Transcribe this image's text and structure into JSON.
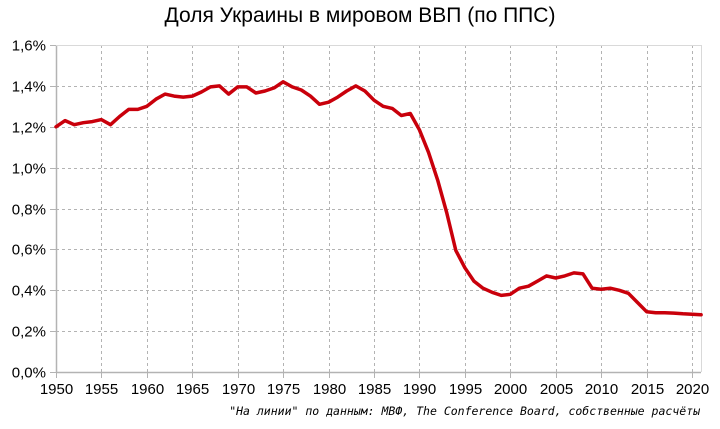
{
  "title": "Доля Украины в мировом ВВП (по ППС)",
  "source_note": "\"На линии\" по данным: МВФ, The Conference Board, собственные расчёты",
  "colors": {
    "line": "#c9000b",
    "grid": "#b3b3b3",
    "axis": "#b3b3b3",
    "background": "#ffffff"
  },
  "chart_data": {
    "type": "line",
    "title": "Доля Украины в мировом ВВП (по ППС)",
    "xlabel": "",
    "ylabel": "",
    "xlim": [
      1950,
      2021
    ],
    "ylim": [
      0,
      1.6
    ],
    "grid": true,
    "legend": null,
    "x_ticks": [
      "1950",
      "1955",
      "1960",
      "1965",
      "1970",
      "1975",
      "1980",
      "1985",
      "1990",
      "1995",
      "2000",
      "2005",
      "2010",
      "2015",
      "2020"
    ],
    "y_ticks": [
      "0,0%",
      "0,2%",
      "0,4%",
      "0,6%",
      "0,8%",
      "1,0%",
      "1,2%",
      "1,4%",
      "1,6%"
    ],
    "y_tick_values": [
      0,
      0.2,
      0.4,
      0.6,
      0.8,
      1.0,
      1.2,
      1.4,
      1.6
    ],
    "series": [
      {
        "name": "Доля Украины в мировом ВВП (по ППС), %",
        "x": [
          1950,
          1951,
          1952,
          1953,
          1954,
          1955,
          1956,
          1957,
          1958,
          1959,
          1960,
          1961,
          1962,
          1963,
          1964,
          1965,
          1966,
          1967,
          1968,
          1969,
          1970,
          1971,
          1972,
          1973,
          1974,
          1975,
          1976,
          1977,
          1978,
          1979,
          1980,
          1981,
          1982,
          1983,
          1984,
          1985,
          1986,
          1987,
          1988,
          1989,
          1990,
          1991,
          1992,
          1993,
          1994,
          1995,
          1996,
          1997,
          1998,
          1999,
          2000,
          2001,
          2002,
          2003,
          2004,
          2005,
          2006,
          2007,
          2008,
          2009,
          2010,
          2011,
          2012,
          2013,
          2014,
          2015,
          2016,
          2017,
          2018,
          2019,
          2020,
          2021
        ],
        "values": [
          1.2,
          1.23,
          1.21,
          1.22,
          1.225,
          1.235,
          1.21,
          1.25,
          1.285,
          1.285,
          1.3,
          1.335,
          1.36,
          1.35,
          1.345,
          1.35,
          1.37,
          1.395,
          1.4,
          1.36,
          1.395,
          1.395,
          1.365,
          1.375,
          1.39,
          1.42,
          1.395,
          1.38,
          1.35,
          1.31,
          1.32,
          1.345,
          1.375,
          1.4,
          1.375,
          1.33,
          1.3,
          1.29,
          1.255,
          1.265,
          1.185,
          1.075,
          0.94,
          0.78,
          0.595,
          0.51,
          0.445,
          0.41,
          0.39,
          0.375,
          0.38,
          0.41,
          0.42,
          0.445,
          0.47,
          0.46,
          0.47,
          0.485,
          0.48,
          0.41,
          0.405,
          0.41,
          0.4,
          0.385,
          0.34,
          0.295,
          0.29,
          0.29,
          0.288,
          0.285,
          0.283,
          0.28
        ]
      }
    ]
  }
}
